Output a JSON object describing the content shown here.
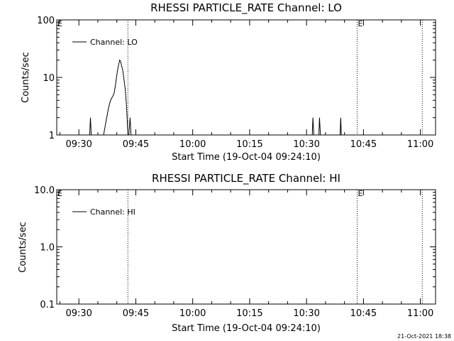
{
  "chart_data": [
    {
      "type": "line",
      "title": "RHESSI PARTICLE_RATE Channel: LO",
      "xlabel": "Start Time (19-Oct-04 09:24:10)",
      "ylabel": "Counts/sec",
      "y_scale": "log",
      "ylim": [
        1,
        100
      ],
      "y_tick_labels": [
        "1",
        "10",
        "100"
      ],
      "y_tick_values": [
        1,
        10,
        100
      ],
      "x_tick_labels": [
        "09:30",
        "09:45",
        "10:00",
        "10:15",
        "10:30",
        "10:45",
        "11:00"
      ],
      "x_tick_values": [
        "09:30",
        "09:45",
        "10:00",
        "10:15",
        "10:30",
        "10:45",
        "11:00"
      ],
      "xlim": [
        "09:24:10",
        "11:04"
      ],
      "grid": false,
      "legend": {
        "placement": "top-left",
        "entries": [
          "Channel: LO"
        ]
      },
      "vertical_markers": [
        {
          "x": "09:24:10",
          "label": "E",
          "style": "solid"
        },
        {
          "x": "09:42:55",
          "label": "",
          "style": "dotted"
        },
        {
          "x": "10:43:20",
          "label": "E",
          "style": "dotted"
        },
        {
          "x": "11:00:30",
          "label": "",
          "style": "dotted"
        }
      ],
      "series": [
        {
          "name": "Channel: LO",
          "x": [
            "09:32:50",
            "09:33:03",
            "09:33:15",
            "09:36:30",
            "09:37:20",
            "09:37:50",
            "09:38:20",
            "09:38:50",
            "09:39:15",
            "09:39:35",
            "09:39:55",
            "09:40:15",
            "09:40:30",
            "09:40:45",
            "09:41:00",
            "09:41:15",
            "09:41:35",
            "09:41:55",
            "09:42:15",
            "09:42:35",
            "09:42:55",
            "09:43:10",
            "09:43:30",
            "09:43:45",
            "09:44:00",
            "09:44:15",
            "10:31:30",
            "10:31:40",
            "10:31:55",
            "10:33:15",
            "10:33:25",
            "10:33:40",
            "10:38:50",
            "10:39:00",
            "10:39:10"
          ],
          "y": [
            1,
            2,
            1,
            1,
            2,
            3,
            4,
            4.6,
            5.2,
            7,
            10,
            14,
            17,
            20,
            19,
            16,
            13,
            9,
            6,
            3,
            1,
            1,
            2,
            1,
            1,
            1,
            1,
            2,
            1,
            1,
            2,
            1,
            1,
            2,
            1
          ]
        }
      ]
    },
    {
      "type": "line",
      "title": "RHESSI PARTICLE_RATE Channel: HI",
      "xlabel": "Start Time (19-Oct-04 09:24:10)",
      "ylabel": "Counts/sec",
      "y_scale": "log",
      "ylim": [
        0.1,
        10
      ],
      "y_tick_labels": [
        "0.1",
        "1.0",
        "10.0"
      ],
      "y_tick_values": [
        0.1,
        1,
        10
      ],
      "x_tick_labels": [
        "09:30",
        "09:45",
        "10:00",
        "10:15",
        "10:30",
        "10:45",
        "11:00"
      ],
      "x_tick_values": [
        "09:30",
        "09:45",
        "10:00",
        "10:15",
        "10:30",
        "10:45",
        "11:00"
      ],
      "xlim": [
        "09:24:10",
        "11:04"
      ],
      "grid": false,
      "legend": {
        "placement": "top-left",
        "entries": [
          "Channel: HI"
        ]
      },
      "vertical_markers": [
        {
          "x": "09:24:10",
          "label": "E",
          "style": "solid"
        },
        {
          "x": "09:42:55",
          "label": "",
          "style": "dotted"
        },
        {
          "x": "10:43:20",
          "label": "E",
          "style": "dotted"
        },
        {
          "x": "11:00:30",
          "label": "",
          "style": "dotted"
        }
      ],
      "series": [
        {
          "name": "Channel: HI",
          "x": [],
          "y": []
        }
      ]
    }
  ],
  "footer": {
    "timestamp": "21-Oct-2021 18:38"
  }
}
